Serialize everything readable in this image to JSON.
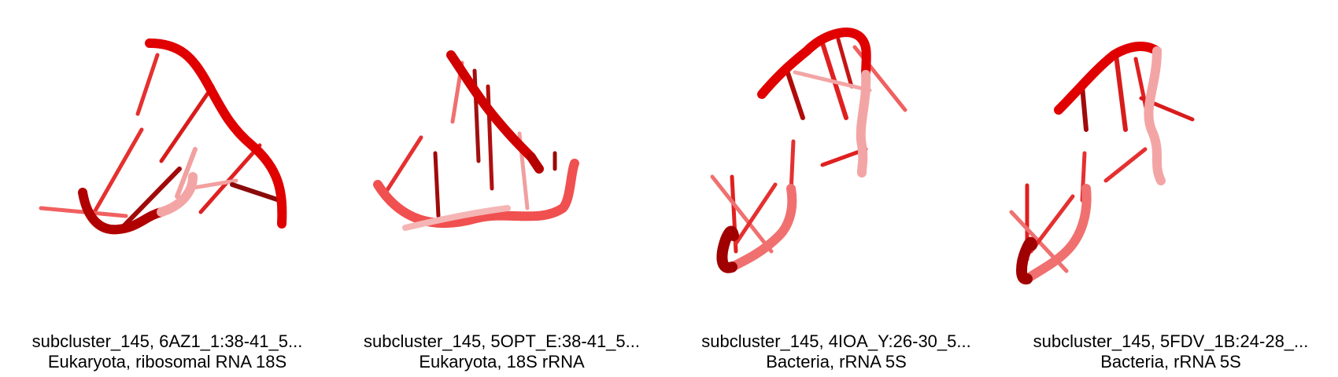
{
  "panels": [
    {
      "id_line": "subcluster_145, 6AZ1_1:38-41_5...",
      "organism_line": "Eukaryota, ribosomal RNA 18S",
      "image_description": "rna-structure-render"
    },
    {
      "id_line": "subcluster_145, 5OPT_E:38-41_5...",
      "organism_line": "Eukaryota, 18S rRNA",
      "image_description": "rna-structure-render"
    },
    {
      "id_line": "subcluster_145, 4IOA_Y:26-30_5...",
      "organism_line": "Bacteria, rRNA 5S",
      "image_description": "rna-structure-render"
    },
    {
      "id_line": "subcluster_145, 5FDV_1B:24-28_...",
      "organism_line": "Bacteria, rRNA 5S",
      "image_description": "rna-structure-render"
    }
  ],
  "colors": {
    "backbone": "#e00000",
    "backbone_dark": "#a00000",
    "backbone_faded": "#f08080",
    "base": "#e53030",
    "base_dark": "#9a0a0a"
  }
}
